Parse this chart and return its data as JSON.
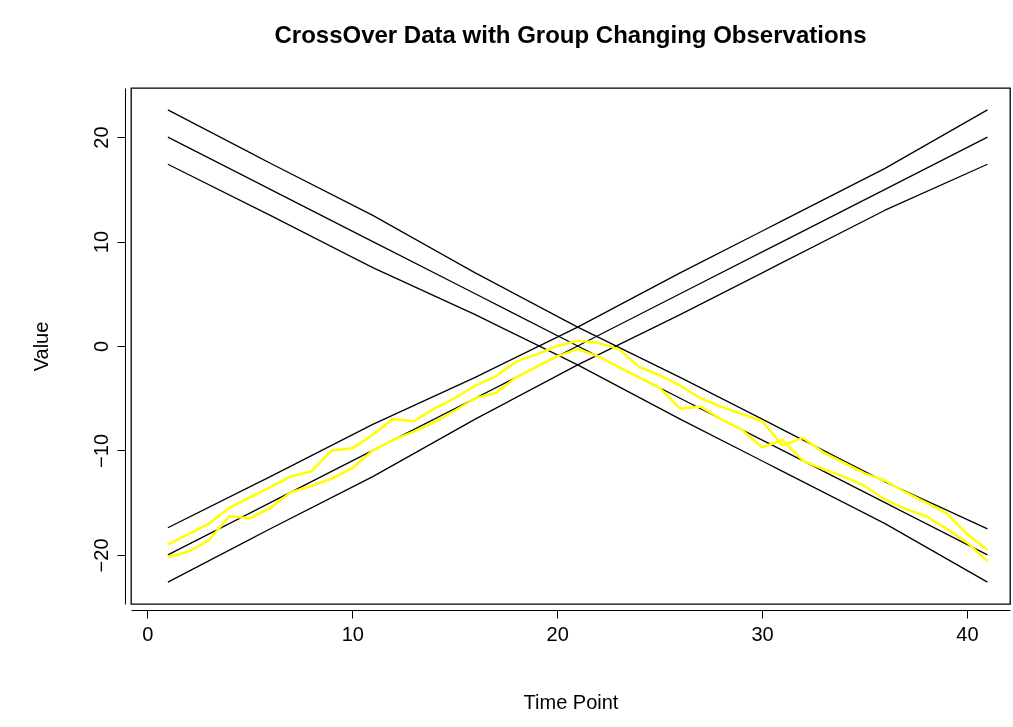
{
  "chart_data": {
    "type": "line",
    "title": "CrossOver Data with Group Changing Observations",
    "xlabel": "Time Point",
    "ylabel": "Value",
    "xlim": [
      -0.8,
      42.1
    ],
    "ylim": [
      -24.7,
      24.7
    ],
    "xticks": [
      0,
      10,
      20,
      30,
      40
    ],
    "yticks": [
      -20,
      -10,
      0,
      10,
      20
    ],
    "grid": false,
    "legend": false,
    "marker": "none",
    "line_style": "solid",
    "series": [
      {
        "color": "#000000",
        "x": [
          1,
          6,
          11,
          16,
          21,
          26,
          31,
          36,
          41
        ],
        "values": [
          22.6,
          17.5,
          12.5,
          7,
          1.8,
          -3,
          -8,
          -13,
          -17.5
        ]
      },
      {
        "color": "#000000",
        "x": [
          1,
          6,
          11,
          16,
          21,
          26,
          31,
          36,
          41
        ],
        "values": [
          20,
          15,
          10,
          5,
          0,
          -5,
          -10,
          -15,
          -20
        ]
      },
      {
        "color": "#000000",
        "x": [
          1,
          6,
          11,
          16,
          21,
          26,
          31,
          36,
          41
        ],
        "values": [
          17.4,
          12.5,
          7.5,
          3,
          -1.8,
          -7,
          -12,
          -17,
          -22.6
        ]
      },
      {
        "color": "#000000",
        "x": [
          1,
          6,
          11,
          16,
          21,
          26,
          31,
          36,
          41
        ],
        "values": [
          -17.4,
          -12.5,
          -7.5,
          -3,
          1.8,
          7,
          12,
          17,
          22.6
        ]
      },
      {
        "color": "#000000",
        "x": [
          1,
          6,
          11,
          16,
          21,
          26,
          31,
          36,
          41
        ],
        "values": [
          -20,
          -15,
          -10,
          -5,
          0,
          5,
          10,
          15,
          20
        ]
      },
      {
        "color": "#000000",
        "x": [
          1,
          6,
          11,
          16,
          21,
          26,
          31,
          36,
          41
        ],
        "values": [
          -22.6,
          -17.5,
          -12.5,
          -7,
          -1.8,
          3,
          8,
          13,
          17.4
        ]
      },
      {
        "color": "#ffff00",
        "x": [
          1,
          2,
          3,
          4,
          5,
          6,
          7,
          8,
          9,
          10,
          11,
          12,
          13,
          14,
          15,
          16,
          17,
          18,
          19,
          20,
          21,
          22,
          23,
          24,
          25,
          26,
          27,
          28,
          29,
          30,
          31,
          32,
          33,
          34,
          35,
          36,
          37,
          38,
          39,
          40,
          41
        ],
        "values": [
          -20.2,
          -19.7,
          -18.6,
          -16.3,
          -16.5,
          -15.5,
          -14,
          -13.4,
          -12.7,
          -11.7,
          -10,
          -9,
          -8.2,
          -7.3,
          -6.2,
          -5,
          -4.5,
          -3,
          -2,
          -1,
          -0.3,
          -1,
          -2,
          -3,
          -4,
          -6,
          -5.8,
          -7,
          -8,
          -9.7,
          -9,
          -11,
          -11.8,
          -12.5,
          -13.4,
          -14.7,
          -15.6,
          -16.3,
          -17.5,
          -18.8,
          -20.6
        ]
      },
      {
        "color": "#ffff00",
        "x": [
          1,
          2,
          3,
          4,
          5,
          6,
          7,
          8,
          9,
          10,
          11,
          12,
          13,
          14,
          15,
          16,
          17,
          18,
          19,
          20,
          21,
          22,
          23,
          24,
          25,
          26,
          27,
          28,
          29,
          30,
          31,
          32,
          33,
          34,
          35,
          36,
          37,
          38,
          39,
          40,
          41
        ],
        "values": [
          -19,
          -18,
          -17,
          -15.5,
          -14.5,
          -13.5,
          -12.5,
          -12,
          -10,
          -9.8,
          -8.5,
          -7,
          -7.2,
          -6,
          -5,
          -3.8,
          -2.9,
          -1.5,
          -0.8,
          0,
          0.5,
          0.3,
          -0.3,
          -2,
          -2.8,
          -3.8,
          -5,
          -5.8,
          -6.5,
          -7.2,
          -9.5,
          -8.8,
          -10.2,
          -11.2,
          -12.2,
          -12.9,
          -14,
          -15,
          -16,
          -18,
          -19.5
        ]
      }
    ]
  }
}
